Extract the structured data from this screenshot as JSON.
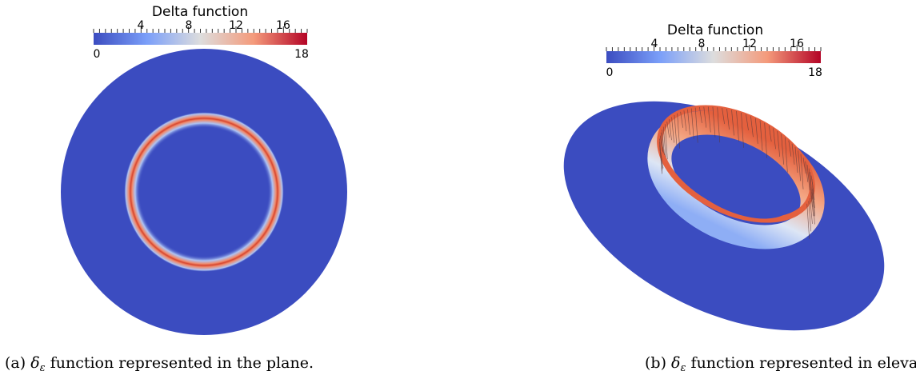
{
  "figure_a": {
    "colorbar": {
      "title": "Delta function",
      "min_label": "0",
      "max_label": "18",
      "tick_labels": [
        "4",
        "8",
        "12",
        "16"
      ],
      "range": [
        0,
        18
      ],
      "colors": [
        "#3b4cc0",
        "#dddddd",
        "#b40426"
      ]
    },
    "caption": {
      "prefix": "(a)",
      "symbol": "δ",
      "subscript": "ε",
      "text": "function represented in the plane."
    },
    "disk_color": "#3b4cc0",
    "ring_peak_color": "#d6452f"
  },
  "figure_b": {
    "colorbar": {
      "title": "Delta function",
      "min_label": "0",
      "max_label": "18",
      "tick_labels": [
        "4",
        "8",
        "12",
        "16"
      ],
      "range": [
        0,
        18
      ],
      "colors": [
        "#3b4cc0",
        "#dddddd",
        "#b40426"
      ]
    },
    "caption": {
      "prefix": "(b)",
      "symbol": "δ",
      "subscript": "ε",
      "text": "function represented in elevation."
    },
    "disk_color": "#3b4cc0",
    "ring_peak_color": "#e4603e"
  }
}
